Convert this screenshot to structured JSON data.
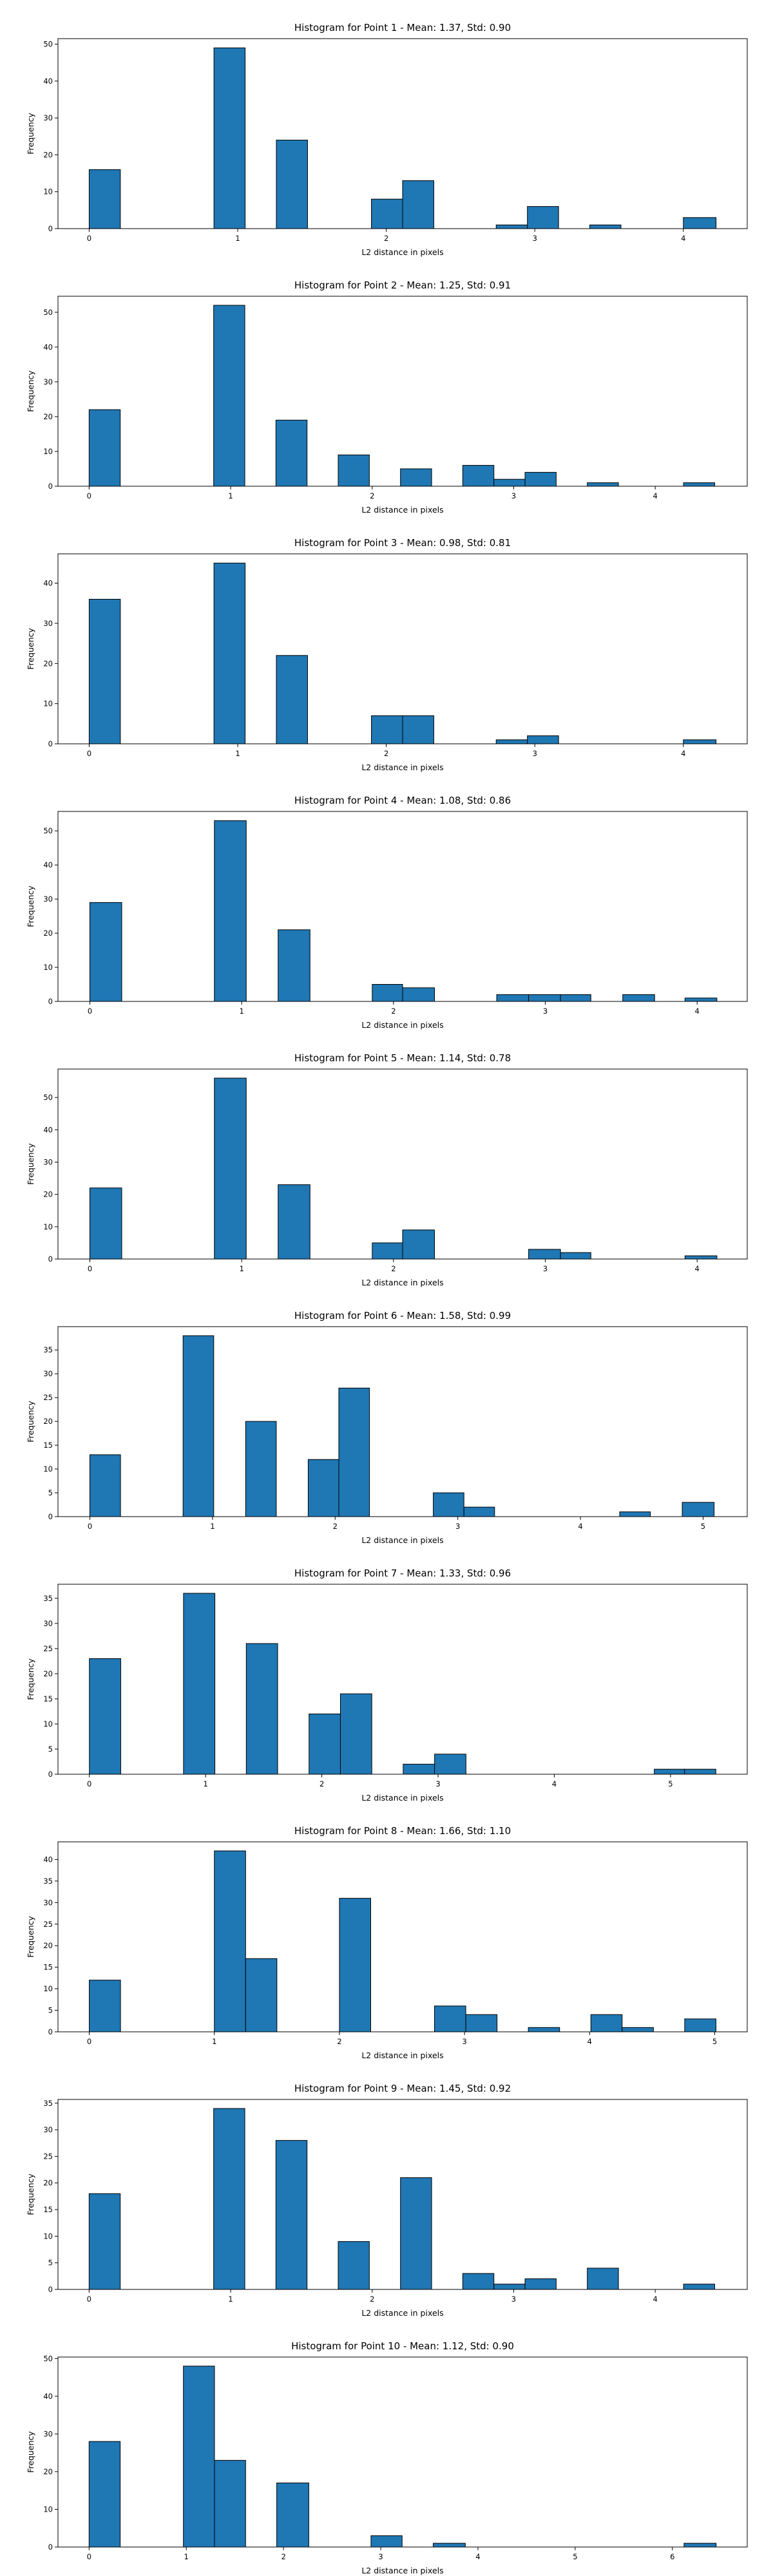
{
  "figure": {
    "background": "#ffffff",
    "bar_color": "#1f77b4",
    "edge_color": "#000000"
  },
  "chart_data": [
    {
      "type": "bar",
      "title": "Histogram for Point 1 - Mean: 1.37, Std: 0.90",
      "xlabel": "L2 distance in pixels",
      "ylabel": "Frequency",
      "xlim": [
        -0.21,
        4.43
      ],
      "ylim": [
        0,
        51.5
      ],
      "xticks": [
        0,
        1,
        2,
        3,
        4
      ],
      "yticks": [
        0,
        10,
        20,
        30,
        40,
        50
      ],
      "grid": false,
      "bins": [
        {
          "x0": 0.0,
          "x1": 0.21,
          "value": 16
        },
        {
          "x0": 0.84,
          "x1": 1.05,
          "value": 49
        },
        {
          "x0": 1.26,
          "x1": 1.47,
          "value": 24
        },
        {
          "x0": 1.9,
          "x1": 2.11,
          "value": 8
        },
        {
          "x0": 2.11,
          "x1": 2.32,
          "value": 13
        },
        {
          "x0": 2.74,
          "x1": 2.95,
          "value": 1
        },
        {
          "x0": 2.95,
          "x1": 3.16,
          "value": 6
        },
        {
          "x0": 3.37,
          "x1": 3.58,
          "value": 1
        },
        {
          "x0": 4.0,
          "x1": 4.22,
          "value": 3
        }
      ]
    },
    {
      "type": "bar",
      "title": "Histogram for Point 2 - Mean: 1.25, Std: 0.91",
      "xlabel": "L2 distance in pixels",
      "ylabel": "Frequency",
      "xlim": [
        -0.22,
        4.65
      ],
      "ylim": [
        0,
        54.6
      ],
      "xticks": [
        0,
        1,
        2,
        3,
        4
      ],
      "yticks": [
        0,
        10,
        20,
        30,
        40,
        50
      ],
      "grid": false,
      "bins": [
        {
          "x0": 0.0,
          "x1": 0.22,
          "value": 22
        },
        {
          "x0": 0.88,
          "x1": 1.1,
          "value": 52
        },
        {
          "x0": 1.32,
          "x1": 1.54,
          "value": 19
        },
        {
          "x0": 1.76,
          "x1": 1.98,
          "value": 9
        },
        {
          "x0": 2.2,
          "x1": 2.42,
          "value": 5
        },
        {
          "x0": 2.64,
          "x1": 2.86,
          "value": 6
        },
        {
          "x0": 2.86,
          "x1": 3.08,
          "value": 2
        },
        {
          "x0": 3.08,
          "x1": 3.3,
          "value": 4
        },
        {
          "x0": 3.52,
          "x1": 3.74,
          "value": 1
        },
        {
          "x0": 4.2,
          "x1": 4.42,
          "value": 1
        }
      ]
    },
    {
      "type": "bar",
      "title": "Histogram for Point 3 - Mean: 0.98, Std: 0.81",
      "xlabel": "L2 distance in pixels",
      "ylabel": "Frequency",
      "xlim": [
        -0.21,
        4.43
      ],
      "ylim": [
        0,
        47.3
      ],
      "xticks": [
        0,
        1,
        2,
        3,
        4
      ],
      "yticks": [
        0,
        10,
        20,
        30,
        40
      ],
      "grid": false,
      "bins": [
        {
          "x0": 0.0,
          "x1": 0.21,
          "value": 36
        },
        {
          "x0": 0.84,
          "x1": 1.05,
          "value": 45
        },
        {
          "x0": 1.26,
          "x1": 1.47,
          "value": 22
        },
        {
          "x0": 1.9,
          "x1": 2.11,
          "value": 7
        },
        {
          "x0": 2.11,
          "x1": 2.32,
          "value": 7
        },
        {
          "x0": 2.74,
          "x1": 2.95,
          "value": 1
        },
        {
          "x0": 2.95,
          "x1": 3.16,
          "value": 2
        },
        {
          "x0": 4.0,
          "x1": 4.22,
          "value": 1
        }
      ]
    },
    {
      "type": "bar",
      "title": "Histogram for Point 4 - Mean: 1.08, Std: 0.86",
      "xlabel": "L2 distance in pixels",
      "ylabel": "Frequency",
      "xlim": [
        -0.21,
        4.33
      ],
      "ylim": [
        0,
        55.7
      ],
      "xticks": [
        0,
        1,
        2,
        3,
        4
      ],
      "yticks": [
        0,
        10,
        20,
        30,
        40,
        50
      ],
      "grid": false,
      "bins": [
        {
          "x0": 0.0,
          "x1": 0.21,
          "value": 29
        },
        {
          "x0": 0.82,
          "x1": 1.03,
          "value": 53
        },
        {
          "x0": 1.24,
          "x1": 1.45,
          "value": 21
        },
        {
          "x0": 1.86,
          "x1": 2.06,
          "value": 5
        },
        {
          "x0": 2.06,
          "x1": 2.27,
          "value": 4
        },
        {
          "x0": 2.68,
          "x1": 2.89,
          "value": 2
        },
        {
          "x0": 2.89,
          "x1": 3.1,
          "value": 2
        },
        {
          "x0": 3.1,
          "x1": 3.3,
          "value": 2
        },
        {
          "x0": 3.51,
          "x1": 3.72,
          "value": 2
        },
        {
          "x0": 3.92,
          "x1": 4.13,
          "value": 1
        }
      ]
    },
    {
      "type": "bar",
      "title": "Histogram for Point 5 - Mean: 1.14, Std: 0.78",
      "xlabel": "L2 distance in pixels",
      "ylabel": "Frequency",
      "xlim": [
        -0.21,
        4.33
      ],
      "ylim": [
        0,
        58.8
      ],
      "xticks": [
        0,
        1,
        2,
        3,
        4
      ],
      "yticks": [
        0,
        10,
        20,
        30,
        40,
        50
      ],
      "grid": false,
      "bins": [
        {
          "x0": 0.0,
          "x1": 0.21,
          "value": 22
        },
        {
          "x0": 0.82,
          "x1": 1.03,
          "value": 56
        },
        {
          "x0": 1.24,
          "x1": 1.45,
          "value": 23
        },
        {
          "x0": 1.86,
          "x1": 2.06,
          "value": 5
        },
        {
          "x0": 2.06,
          "x1": 2.27,
          "value": 9
        },
        {
          "x0": 2.89,
          "x1": 3.1,
          "value": 3
        },
        {
          "x0": 3.1,
          "x1": 3.3,
          "value": 2
        },
        {
          "x0": 3.92,
          "x1": 4.13,
          "value": 1
        }
      ]
    },
    {
      "type": "bar",
      "title": "Histogram for Point 6 - Mean: 1.58, Std: 0.99",
      "xlabel": "L2 distance in pixels",
      "ylabel": "Frequency",
      "xlim": [
        -0.26,
        5.36
      ],
      "ylim": [
        0,
        39.9
      ],
      "xticks": [
        0,
        1,
        2,
        3,
        4,
        5
      ],
      "yticks": [
        0,
        5,
        10,
        15,
        20,
        25,
        30,
        35
      ],
      "grid": false,
      "bins": [
        {
          "x0": 0.0,
          "x1": 0.25,
          "value": 13
        },
        {
          "x0": 0.76,
          "x1": 1.01,
          "value": 38
        },
        {
          "x0": 1.27,
          "x1": 1.52,
          "value": 20
        },
        {
          "x0": 1.78,
          "x1": 2.03,
          "value": 12
        },
        {
          "x0": 2.03,
          "x1": 2.28,
          "value": 27
        },
        {
          "x0": 2.8,
          "x1": 3.05,
          "value": 5
        },
        {
          "x0": 3.05,
          "x1": 3.3,
          "value": 2
        },
        {
          "x0": 4.32,
          "x1": 4.57,
          "value": 1
        },
        {
          "x0": 4.83,
          "x1": 5.09,
          "value": 3
        }
      ]
    },
    {
      "type": "bar",
      "title": "Histogram for Point 7 - Mean: 1.33, Std: 0.96",
      "xlabel": "L2 distance in pixels",
      "ylabel": "Frequency",
      "xlim": [
        -0.27,
        5.66
      ],
      "ylim": [
        0,
        37.8
      ],
      "xticks": [
        0,
        1,
        2,
        3,
        4,
        5
      ],
      "yticks": [
        0,
        5,
        10,
        15,
        20,
        25,
        30,
        35
      ],
      "grid": false,
      "bins": [
        {
          "x0": 0.0,
          "x1": 0.27,
          "value": 23
        },
        {
          "x0": 0.81,
          "x1": 1.08,
          "value": 36
        },
        {
          "x0": 1.35,
          "x1": 1.62,
          "value": 26
        },
        {
          "x0": 1.89,
          "x1": 2.16,
          "value": 12
        },
        {
          "x0": 2.16,
          "x1": 2.43,
          "value": 16
        },
        {
          "x0": 2.7,
          "x1": 2.97,
          "value": 2
        },
        {
          "x0": 2.97,
          "x1": 3.24,
          "value": 4
        },
        {
          "x0": 4.86,
          "x1": 5.12,
          "value": 1
        },
        {
          "x0": 5.12,
          "x1": 5.39,
          "value": 1
        }
      ]
    },
    {
      "type": "bar",
      "title": "Histogram for Point 8 - Mean: 1.66, Std: 1.10",
      "xlabel": "L2 distance in pixels",
      "ylabel": "Frequency",
      "xlim": [
        -0.25,
        5.26
      ],
      "ylim": [
        0,
        44.1
      ],
      "xticks": [
        0,
        1,
        2,
        3,
        4,
        5
      ],
      "yticks": [
        0,
        5,
        10,
        15,
        20,
        25,
        30,
        35,
        40
      ],
      "grid": false,
      "bins": [
        {
          "x0": 0.0,
          "x1": 0.25,
          "value": 12
        },
        {
          "x0": 1.0,
          "x1": 1.25,
          "value": 42
        },
        {
          "x0": 1.25,
          "x1": 1.5,
          "value": 17
        },
        {
          "x0": 2.0,
          "x1": 2.25,
          "value": 31
        },
        {
          "x0": 2.76,
          "x1": 3.01,
          "value": 6
        },
        {
          "x0": 3.01,
          "x1": 3.26,
          "value": 4
        },
        {
          "x0": 3.51,
          "x1": 3.76,
          "value": 1
        },
        {
          "x0": 4.01,
          "x1": 4.26,
          "value": 4
        },
        {
          "x0": 4.26,
          "x1": 4.51,
          "value": 1
        },
        {
          "x0": 4.76,
          "x1": 5.01,
          "value": 3
        }
      ]
    },
    {
      "type": "bar",
      "title": "Histogram for Point 9 - Mean: 1.45, Std: 0.92",
      "xlabel": "L2 distance in pixels",
      "ylabel": "Frequency",
      "xlim": [
        -0.22,
        4.65
      ],
      "ylim": [
        0,
        35.7
      ],
      "xticks": [
        0,
        1,
        2,
        3,
        4
      ],
      "yticks": [
        0,
        5,
        10,
        15,
        20,
        25,
        30,
        35
      ],
      "grid": false,
      "bins": [
        {
          "x0": 0.0,
          "x1": 0.22,
          "value": 18
        },
        {
          "x0": 0.88,
          "x1": 1.1,
          "value": 34
        },
        {
          "x0": 1.32,
          "x1": 1.54,
          "value": 28
        },
        {
          "x0": 1.76,
          "x1": 1.98,
          "value": 9
        },
        {
          "x0": 2.2,
          "x1": 2.42,
          "value": 21
        },
        {
          "x0": 2.64,
          "x1": 2.86,
          "value": 3
        },
        {
          "x0": 2.86,
          "x1": 3.08,
          "value": 1
        },
        {
          "x0": 3.08,
          "x1": 3.3,
          "value": 2
        },
        {
          "x0": 3.52,
          "x1": 3.74,
          "value": 4
        },
        {
          "x0": 4.2,
          "x1": 4.42,
          "value": 1
        }
      ]
    },
    {
      "type": "bar",
      "title": "Histogram for Point 10 - Mean: 1.12, Std: 0.90",
      "xlabel": "L2 distance in pixels",
      "ylabel": "Frequency",
      "xlim": [
        -0.32,
        6.77
      ],
      "ylim": [
        0,
        50.4
      ],
      "xticks": [
        0,
        1,
        2,
        3,
        4,
        5,
        6
      ],
      "yticks": [
        0,
        10,
        20,
        30,
        40,
        50
      ],
      "grid": false,
      "bins": [
        {
          "x0": 0.0,
          "x1": 0.32,
          "value": 28
        },
        {
          "x0": 0.97,
          "x1": 1.29,
          "value": 48
        },
        {
          "x0": 1.29,
          "x1": 1.61,
          "value": 23
        },
        {
          "x0": 1.93,
          "x1": 2.26,
          "value": 17
        },
        {
          "x0": 2.9,
          "x1": 3.22,
          "value": 3
        },
        {
          "x0": 3.54,
          "x1": 3.87,
          "value": 1
        },
        {
          "x0": 6.12,
          "x1": 6.45,
          "value": 1
        }
      ]
    }
  ]
}
